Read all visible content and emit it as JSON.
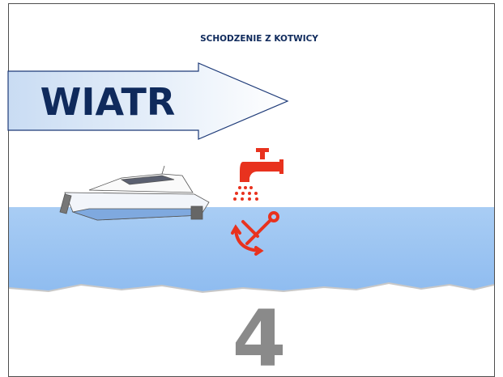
{
  "header": {
    "title": "SCHODZENIE Z KOTWICY"
  },
  "arrow": {
    "label": "WIATR"
  },
  "step": {
    "number": "4"
  }
}
